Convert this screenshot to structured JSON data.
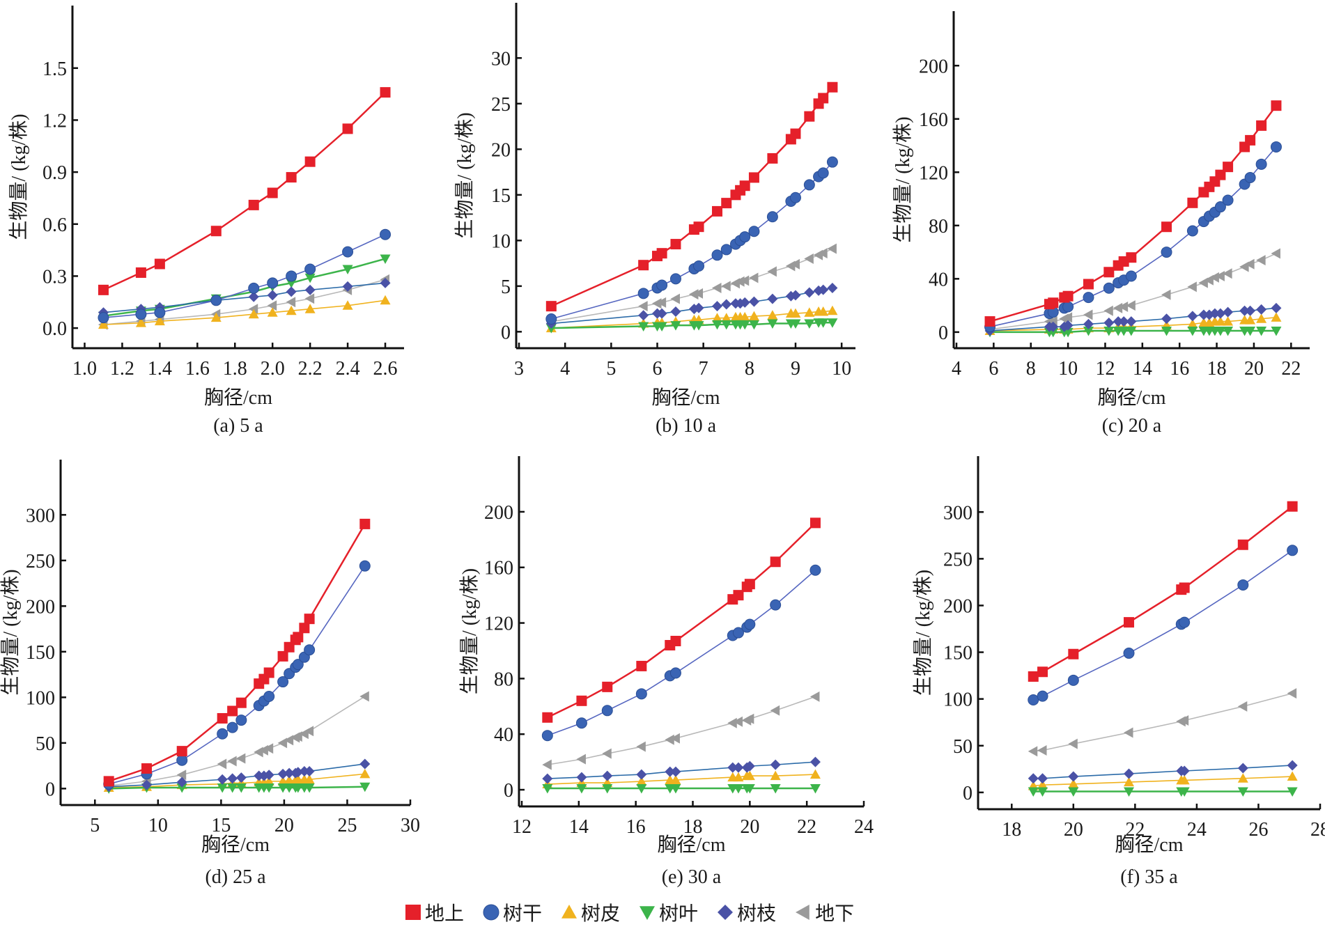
{
  "figure": {
    "legend": [
      {
        "key": "aboveground",
        "label": "地上",
        "marker": "square",
        "color": "#e5202a"
      },
      {
        "key": "stem",
        "label": "树干",
        "marker": "circle",
        "color": "#3a64b4"
      },
      {
        "key": "bark",
        "label": "树皮",
        "marker": "triangle-up",
        "color": "#f0b21e"
      },
      {
        "key": "leaf",
        "label": "树叶",
        "marker": "triangle-down",
        "color": "#3cb44a"
      },
      {
        "key": "branch",
        "label": "树枝",
        "marker": "diamond",
        "color": "#4a52a6"
      },
      {
        "key": "belowground",
        "label": "地下",
        "marker": "triangle-left",
        "color": "#9a9a9a"
      }
    ]
  },
  "chart_data": [
    {
      "type": "line",
      "caption": "(a) 5 a",
      "xlabel": "胸径/cm",
      "ylabel": "生物量/ (kg/株)",
      "xlim": [
        0.95,
        2.7
      ],
      "ylim": [
        -0.1,
        1.7
      ],
      "xticks": [
        1.0,
        1.2,
        1.4,
        1.6,
        1.8,
        2.0,
        2.2,
        2.4,
        2.6
      ],
      "xtick_labels": [
        "1.0",
        "1.2",
        "1.4",
        "1.6",
        "1.8",
        "2.0",
        "2.2",
        "2.4",
        "2.6"
      ],
      "yticks": [
        0.0,
        0.3,
        0.6,
        0.9,
        1.2,
        1.5
      ],
      "ytick_labels": [
        "0.0",
        "0.3",
        "0.6",
        "0.9",
        "1.2",
        "1.5"
      ],
      "x": [
        1.1,
        1.3,
        1.4,
        1.7,
        1.9,
        2.0,
        2.1,
        2.2,
        2.4,
        2.6
      ],
      "series": [
        {
          "name": "地上",
          "key": "aboveground",
          "values": [
            0.22,
            0.32,
            0.37,
            0.56,
            0.71,
            0.78,
            0.87,
            0.96,
            1.15,
            1.36
          ]
        },
        {
          "name": "树干",
          "key": "stem",
          "values": [
            0.06,
            0.08,
            0.09,
            0.16,
            0.23,
            0.26,
            0.3,
            0.34,
            0.44,
            0.54
          ]
        },
        {
          "name": "树皮",
          "key": "bark",
          "values": [
            0.02,
            0.03,
            0.04,
            0.06,
            0.08,
            0.09,
            0.1,
            0.11,
            0.13,
            0.16
          ]
        },
        {
          "name": "树叶",
          "key": "leaf",
          "values": [
            0.07,
            0.1,
            0.11,
            0.17,
            0.21,
            0.24,
            0.26,
            0.29,
            0.34,
            0.4
          ]
        },
        {
          "name": "树枝",
          "key": "branch",
          "values": [
            0.09,
            0.11,
            0.12,
            0.16,
            0.18,
            0.19,
            0.21,
            0.22,
            0.24,
            0.26
          ]
        },
        {
          "name": "地下",
          "key": "belowground",
          "values": [
            0.02,
            0.04,
            0.05,
            0.08,
            0.11,
            0.13,
            0.15,
            0.17,
            0.22,
            0.28
          ]
        }
      ]
    },
    {
      "type": "line",
      "caption": "(b) 10 a",
      "xlabel": "胸径/cm",
      "ylabel": "生物量/ (kg/株)",
      "xlim": [
        3,
        10.3
      ],
      "ylim": [
        -1.5,
        33
      ],
      "xticks": [
        3,
        4,
        5,
        6,
        7,
        8,
        9,
        10
      ],
      "xtick_labels": [
        "3",
        "4",
        "5",
        "6",
        "7",
        "8",
        "9",
        "10"
      ],
      "yticks": [
        0,
        5,
        10,
        15,
        20,
        25,
        30
      ],
      "ytick_labels": [
        "0",
        "5",
        "10",
        "15",
        "20",
        "25",
        "30"
      ],
      "x": [
        3.7,
        5.7,
        6.0,
        6.1,
        6.4,
        6.8,
        6.9,
        7.3,
        7.5,
        7.7,
        7.8,
        7.9,
        8.1,
        8.5,
        8.9,
        9.0,
        9.3,
        9.5,
        9.6,
        9.8
      ],
      "series": [
        {
          "name": "地上",
          "key": "aboveground",
          "values": [
            2.8,
            7.3,
            8.3,
            8.6,
            9.6,
            11.2,
            11.5,
            13.2,
            14.1,
            15.0,
            15.5,
            16.0,
            16.9,
            19.0,
            21.1,
            21.7,
            23.6,
            25.0,
            25.6,
            26.8
          ]
        },
        {
          "name": "树干",
          "key": "stem",
          "values": [
            1.4,
            4.2,
            4.8,
            5.1,
            5.8,
            6.9,
            7.2,
            8.4,
            9.0,
            9.6,
            10.0,
            10.4,
            11.0,
            12.6,
            14.3,
            14.7,
            16.1,
            17.0,
            17.4,
            18.6
          ]
        },
        {
          "name": "树皮",
          "key": "bark",
          "values": [
            0.4,
            0.9,
            1.0,
            1.0,
            1.1,
            1.3,
            1.3,
            1.5,
            1.5,
            1.6,
            1.6,
            1.6,
            1.7,
            1.8,
            2.0,
            2.0,
            2.1,
            2.2,
            2.2,
            2.3
          ]
        },
        {
          "name": "树叶",
          "key": "leaf",
          "values": [
            0.4,
            0.6,
            0.6,
            0.6,
            0.7,
            0.7,
            0.7,
            0.8,
            0.8,
            0.8,
            0.8,
            0.8,
            0.8,
            0.9,
            0.9,
            0.9,
            0.9,
            1.0,
            1.0,
            1.0
          ]
        },
        {
          "name": "树枝",
          "key": "branch",
          "values": [
            0.9,
            1.8,
            2.0,
            2.0,
            2.2,
            2.5,
            2.6,
            2.8,
            3.0,
            3.1,
            3.1,
            3.2,
            3.3,
            3.6,
            3.9,
            4.0,
            4.3,
            4.5,
            4.6,
            4.8
          ]
        },
        {
          "name": "地下",
          "key": "belowground",
          "values": [
            1.1,
            2.8,
            3.1,
            3.2,
            3.6,
            4.1,
            4.2,
            4.8,
            5.0,
            5.3,
            5.5,
            5.6,
            5.9,
            6.6,
            7.2,
            7.4,
            8.0,
            8.4,
            8.6,
            9.1
          ]
        }
      ]
    },
    {
      "type": "line",
      "caption": "(c) 20 a",
      "xlabel": "胸径/cm",
      "ylabel": "生物量/ (kg/株)",
      "xlim": [
        4,
        23
      ],
      "ylim": [
        -10,
        220
      ],
      "xticks": [
        4,
        6,
        8,
        10,
        12,
        14,
        16,
        18,
        20,
        22
      ],
      "xtick_labels": [
        "4",
        "6",
        "8",
        "10",
        "12",
        "14",
        "16",
        "18",
        "20",
        "22"
      ],
      "yticks": [
        0,
        40,
        80,
        120,
        160,
        200
      ],
      "ytick_labels": [
        "0",
        "40",
        "80",
        "120",
        "160",
        "200"
      ],
      "x": [
        5.8,
        9.0,
        9.2,
        9.8,
        10.0,
        11.1,
        12.2,
        12.7,
        13.0,
        13.4,
        15.3,
        16.7,
        17.3,
        17.6,
        17.9,
        18.2,
        18.6,
        19.5,
        19.8,
        20.4,
        21.2
      ],
      "series": [
        {
          "name": "地上",
          "key": "aboveground",
          "values": [
            8,
            21,
            22,
            26,
            27,
            36,
            45,
            50,
            53,
            56,
            79,
            97,
            105,
            109,
            113,
            118,
            124,
            139,
            144,
            155,
            170
          ]
        },
        {
          "name": "树干",
          "key": "stem",
          "values": [
            4,
            14,
            15,
            18,
            19,
            26,
            33,
            37,
            39,
            42,
            60,
            76,
            83,
            87,
            90,
            94,
            99,
            111,
            116,
            126,
            139
          ]
        },
        {
          "name": "树皮",
          "key": "bark",
          "values": [
            1,
            2,
            2,
            2,
            2,
            3,
            3,
            4,
            4,
            4,
            5,
            6,
            7,
            7,
            8,
            8,
            8,
            9,
            9,
            10,
            11
          ]
        },
        {
          "name": "树叶",
          "key": "leaf",
          "values": [
            0,
            0,
            0,
            0,
            0,
            1,
            1,
            1,
            1,
            1,
            1,
            1,
            1,
            1,
            1,
            1,
            1,
            1,
            1,
            1,
            1
          ]
        },
        {
          "name": "树枝",
          "key": "branch",
          "values": [
            1,
            4,
            4,
            4,
            5,
            6,
            7,
            8,
            8,
            8,
            10,
            12,
            13,
            13,
            14,
            14,
            15,
            16,
            16,
            17,
            18
          ]
        },
        {
          "name": "地下",
          "key": "belowground",
          "values": [
            2,
            8,
            8,
            10,
            11,
            13,
            16,
            18,
            19,
            20,
            28,
            34,
            37,
            39,
            41,
            42,
            44,
            49,
            51,
            54,
            59
          ]
        }
      ]
    },
    {
      "type": "line",
      "caption": "(d) 25 a",
      "xlabel": "胸径/cm",
      "ylabel": "生物量/ (kg/株)",
      "xlim": [
        2.5,
        30
      ],
      "ylim": [
        -15,
        330
      ],
      "xticks": [
        5,
        10,
        15,
        20,
        25,
        30
      ],
      "xtick_labels": [
        "5",
        "10",
        "15",
        "20",
        "25",
        "30"
      ],
      "yticks": [
        0,
        50,
        100,
        150,
        200,
        250,
        300
      ],
      "ytick_labels": [
        "0",
        "50",
        "100",
        "150",
        "200",
        "250",
        "300"
      ],
      "x": [
        6.1,
        9.1,
        11.9,
        15.1,
        15.9,
        16.6,
        18.0,
        18.4,
        18.8,
        19.9,
        20.4,
        20.9,
        21.1,
        21.6,
        22.0,
        26.4
      ],
      "series": [
        {
          "name": "地上",
          "key": "aboveground",
          "values": [
            8,
            22,
            41,
            77,
            85,
            94,
            115,
            120,
            127,
            145,
            155,
            163,
            166,
            176,
            186,
            290
          ]
        },
        {
          "name": "树干",
          "key": "stem",
          "values": [
            5,
            16,
            31,
            60,
            67,
            75,
            91,
            96,
            101,
            117,
            126,
            133,
            136,
            144,
            152,
            244
          ]
        },
        {
          "name": "树皮",
          "key": "bark",
          "values": [
            1,
            2,
            4,
            5,
            6,
            6,
            7,
            7,
            8,
            8,
            9,
            9,
            10,
            10,
            10,
            16
          ]
        },
        {
          "name": "树叶",
          "key": "leaf",
          "values": [
            0,
            1,
            1,
            1,
            1,
            1,
            1,
            1,
            1,
            1,
            1,
            1,
            1,
            1,
            1,
            2
          ]
        },
        {
          "name": "树枝",
          "key": "branch",
          "values": [
            2,
            4,
            7,
            10,
            11,
            12,
            14,
            14,
            15,
            16,
            17,
            17,
            18,
            19,
            19,
            27
          ]
        },
        {
          "name": "地下",
          "key": "belowground",
          "values": [
            3,
            8,
            15,
            27,
            30,
            33,
            40,
            42,
            44,
            50,
            53,
            56,
            57,
            60,
            63,
            101
          ]
        }
      ]
    },
    {
      "type": "line",
      "caption": "(e) 30 a",
      "xlabel": "胸径/cm",
      "ylabel": "生物量/ (kg/株)",
      "xlim": [
        12,
        24
      ],
      "ylim": [
        -10,
        220
      ],
      "xticks": [
        12,
        14,
        16,
        18,
        20,
        22,
        24
      ],
      "xtick_labels": [
        "12",
        "14",
        "16",
        "18",
        "20",
        "22",
        "24"
      ],
      "yticks": [
        0,
        40,
        80,
        120,
        160,
        200
      ],
      "ytick_labels": [
        "0",
        "40",
        "80",
        "120",
        "160",
        "200"
      ],
      "x": [
        12.9,
        14.1,
        15.0,
        16.2,
        17.2,
        17.4,
        19.4,
        19.6,
        19.9,
        20.0,
        20.9,
        22.3
      ],
      "series": [
        {
          "name": "地上",
          "key": "aboveground",
          "values": [
            52,
            64,
            74,
            89,
            104,
            107,
            137,
            140,
            146,
            148,
            164,
            192
          ]
        },
        {
          "name": "树干",
          "key": "stem",
          "values": [
            39,
            48,
            57,
            69,
            82,
            84,
            111,
            113,
            117,
            119,
            133,
            158
          ]
        },
        {
          "name": "树皮",
          "key": "bark",
          "values": [
            4,
            5,
            5,
            6,
            7,
            7,
            9,
            9,
            10,
            10,
            10,
            11
          ]
        },
        {
          "name": "树叶",
          "key": "leaf",
          "values": [
            1,
            1,
            1,
            1,
            1,
            1,
            1,
            1,
            1,
            1,
            1,
            1
          ]
        },
        {
          "name": "树枝",
          "key": "branch",
          "values": [
            8,
            9,
            10,
            11,
            13,
            13,
            16,
            16,
            16,
            17,
            18,
            20
          ]
        },
        {
          "name": "地下",
          "key": "belowground",
          "values": [
            18,
            22,
            26,
            31,
            36,
            37,
            48,
            49,
            50,
            51,
            57,
            67
          ]
        }
      ]
    },
    {
      "type": "line",
      "caption": "(f) 35 a",
      "xlabel": "胸径/cm",
      "ylabel": "生物量/ (kg/株)",
      "xlim": [
        17,
        28
      ],
      "ylim": [
        -15,
        330
      ],
      "xticks": [
        18,
        20,
        22,
        24,
        26,
        28
      ],
      "xtick_labels": [
        "18",
        "20",
        "22",
        "24",
        "26",
        "28"
      ],
      "yticks": [
        0,
        50,
        100,
        150,
        200,
        250,
        300
      ],
      "ytick_labels": [
        "0",
        "50",
        "100",
        "150",
        "200",
        "250",
        "300"
      ],
      "x": [
        18.7,
        19.0,
        20.0,
        21.8,
        23.5,
        23.6,
        25.5,
        27.1
      ],
      "series": [
        {
          "name": "地上",
          "key": "aboveground",
          "values": [
            124,
            129,
            148,
            182,
            217,
            219,
            265,
            306
          ]
        },
        {
          "name": "树干",
          "key": "stem",
          "values": [
            99,
            103,
            120,
            149,
            180,
            182,
            222,
            259
          ]
        },
        {
          "name": "树皮",
          "key": "bark",
          "values": [
            7,
            8,
            9,
            11,
            13,
            13,
            15,
            17
          ]
        },
        {
          "name": "树叶",
          "key": "leaf",
          "values": [
            1,
            1,
            1,
            1,
            1,
            1,
            1,
            1
          ]
        },
        {
          "name": "树枝",
          "key": "branch",
          "values": [
            15,
            15,
            17,
            20,
            23,
            23,
            26,
            29
          ]
        },
        {
          "name": "地下",
          "key": "belowground",
          "values": [
            44,
            45,
            52,
            64,
            76,
            77,
            92,
            106
          ]
        }
      ]
    }
  ]
}
